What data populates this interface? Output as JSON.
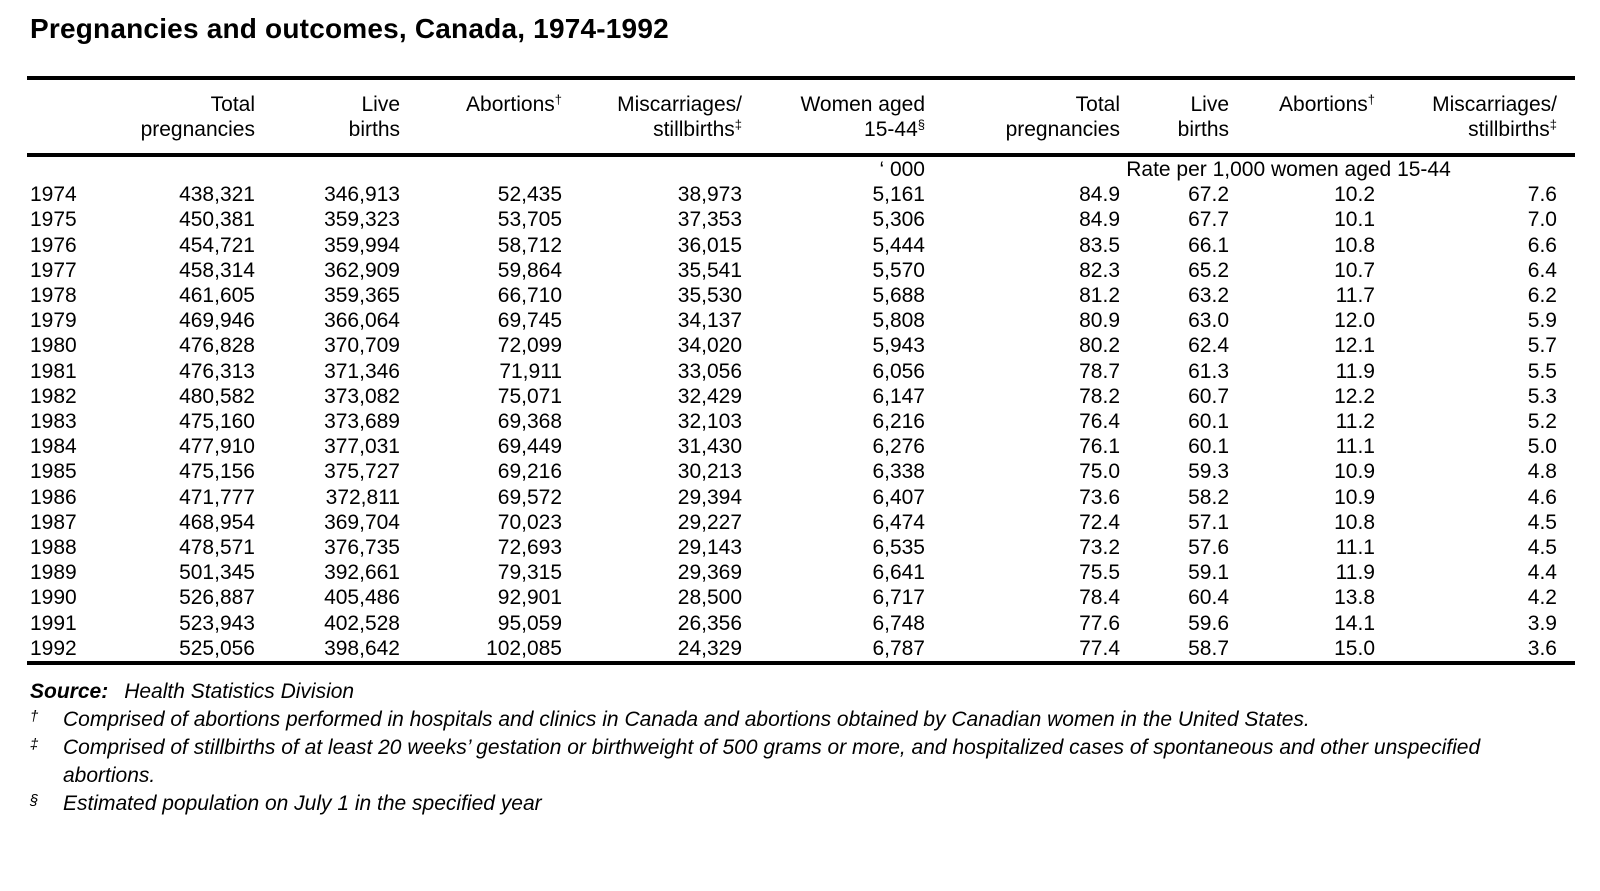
{
  "page": {
    "title": "Pregnancies and outcomes, Canada, 1974-1992"
  },
  "table": {
    "column_headers": [
      {
        "line1": "",
        "sup1": "",
        "line2": "",
        "sup2": ""
      },
      {
        "line1": "Total",
        "sup1": "",
        "line2": "pregnancies",
        "sup2": ""
      },
      {
        "line1": "Live",
        "sup1": "",
        "line2": "births",
        "sup2": ""
      },
      {
        "line1": "Abortions",
        "sup1": "†",
        "line2": "",
        "sup2": ""
      },
      {
        "line1": "Miscarriages/",
        "sup1": "",
        "line2": "stillbirths",
        "sup2": "‡"
      },
      {
        "line1": "Women aged",
        "sup1": "",
        "line2": "15-44",
        "sup2": "§"
      },
      {
        "line1": "Total",
        "sup1": "",
        "line2": "pregnancies",
        "sup2": ""
      },
      {
        "line1": "Live",
        "sup1": "",
        "line2": "births",
        "sup2": ""
      },
      {
        "line1": "Abortions",
        "sup1": "†",
        "line2": "",
        "sup2": ""
      },
      {
        "line1": "Miscarriages/",
        "sup1": "",
        "line2": "stillbirths",
        "sup2": "‡"
      }
    ],
    "units": {
      "women_unit": "‘ 000",
      "rate_label": "Rate per 1,000 women aged 15-44"
    },
    "rows": [
      [
        "1974",
        "438,321",
        "346,913",
        "52,435",
        "38,973",
        "5,161",
        "84.9",
        "67.2",
        "10.2",
        "7.6"
      ],
      [
        "1975",
        "450,381",
        "359,323",
        "53,705",
        "37,353",
        "5,306",
        "84.9",
        "67.7",
        "10.1",
        "7.0"
      ],
      [
        "1976",
        "454,721",
        "359,994",
        "58,712",
        "36,015",
        "5,444",
        "83.5",
        "66.1",
        "10.8",
        "6.6"
      ],
      [
        "1977",
        "458,314",
        "362,909",
        "59,864",
        "35,541",
        "5,570",
        "82.3",
        "65.2",
        "10.7",
        "6.4"
      ],
      [
        "1978",
        "461,605",
        "359,365",
        "66,710",
        "35,530",
        "5,688",
        "81.2",
        "63.2",
        "11.7",
        "6.2"
      ],
      [
        "1979",
        "469,946",
        "366,064",
        "69,745",
        "34,137",
        "5,808",
        "80.9",
        "63.0",
        "12.0",
        "5.9"
      ],
      [
        "1980",
        "476,828",
        "370,709",
        "72,099",
        "34,020",
        "5,943",
        "80.2",
        "62.4",
        "12.1",
        "5.7"
      ],
      [
        "1981",
        "476,313",
        "371,346",
        "71,911",
        "33,056",
        "6,056",
        "78.7",
        "61.3",
        "11.9",
        "5.5"
      ],
      [
        "1982",
        "480,582",
        "373,082",
        "75,071",
        "32,429",
        "6,147",
        "78.2",
        "60.7",
        "12.2",
        "5.3"
      ],
      [
        "1983",
        "475,160",
        "373,689",
        "69,368",
        "32,103",
        "6,216",
        "76.4",
        "60.1",
        "11.2",
        "5.2"
      ],
      [
        "1984",
        "477,910",
        "377,031",
        "69,449",
        "31,430",
        "6,276",
        "76.1",
        "60.1",
        "11.1",
        "5.0"
      ],
      [
        "1985",
        "475,156",
        "375,727",
        "69,216",
        "30,213",
        "6,338",
        "75.0",
        "59.3",
        "10.9",
        "4.8"
      ],
      [
        "1986",
        "471,777",
        "372,811",
        "69,572",
        "29,394",
        "6,407",
        "73.6",
        "58.2",
        "10.9",
        "4.6"
      ],
      [
        "1987",
        "468,954",
        "369,704",
        "70,023",
        "29,227",
        "6,474",
        "72.4",
        "57.1",
        "10.8",
        "4.5"
      ],
      [
        "1988",
        "478,571",
        "376,735",
        "72,693",
        "29,143",
        "6,535",
        "73.2",
        "57.6",
        "11.1",
        "4.5"
      ],
      [
        "1989",
        "501,345",
        "392,661",
        "79,315",
        "29,369",
        "6,641",
        "75.5",
        "59.1",
        "11.9",
        "4.4"
      ],
      [
        "1990",
        "526,887",
        "405,486",
        "92,901",
        "28,500",
        "6,717",
        "78.4",
        "60.4",
        "13.8",
        "4.2"
      ],
      [
        "1991",
        "523,943",
        "402,528",
        "95,059",
        "26,356",
        "6,748",
        "77.6",
        "59.6",
        "14.1",
        "3.9"
      ],
      [
        "1992",
        "525,056",
        "398,642",
        "102,085",
        "24,329",
        "6,787",
        "77.4",
        "58.7",
        "15.0",
        "3.6"
      ]
    ]
  },
  "footer": {
    "source_label": "Source:",
    "source_text": "Health Statistics Division",
    "footnotes": [
      {
        "marker": "†",
        "text": "Comprised of abortions performed in hospitals and clinics in Canada and abortions obtained by Canadian women in the United States."
      },
      {
        "marker": "‡",
        "text": "Comprised of stillbirths of at least 20 weeks’ gestation or birthweight of 500 grams or more, and hospitalized cases of spontaneous and other unspecified abortions."
      },
      {
        "marker": "§",
        "text": "Estimated population on July 1 in the specified year"
      }
    ]
  },
  "colors": {
    "text": "#000000",
    "background": "#ffffff",
    "rule": "#000000"
  }
}
